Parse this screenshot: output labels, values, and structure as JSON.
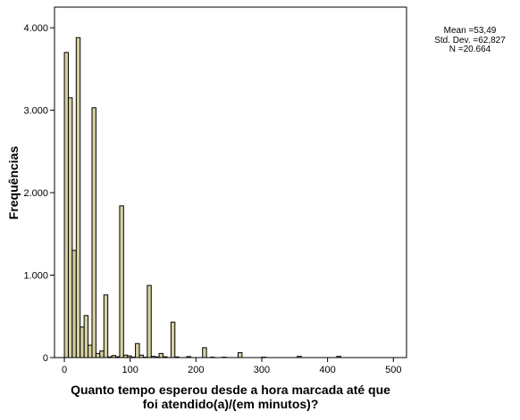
{
  "chart_data": {
    "type": "bar",
    "subtype": "histogram",
    "xlabel_lines": [
      "Quanto tempo esperou desde a hora marcada até que",
      "foi atendido(a)/(em minutos)?"
    ],
    "ylabel": "Frequências",
    "xlim": [
      -15,
      520
    ],
    "ylim": [
      0,
      4250
    ],
    "bin_width": 6,
    "x_ticks": [
      0,
      100,
      200,
      300,
      400,
      500
    ],
    "x_tick_labels": [
      "0",
      "100",
      "200",
      "300",
      "400",
      "500"
    ],
    "y_ticks": [
      0,
      1000,
      2000,
      3000,
      4000
    ],
    "y_tick_labels": [
      "0",
      "1.000",
      "2.000",
      "3.000",
      "4.000"
    ],
    "bins": [
      {
        "x0": 0,
        "count": 3700
      },
      {
        "x0": 6,
        "count": 3150
      },
      {
        "x0": 12,
        "count": 1300
      },
      {
        "x0": 18,
        "count": 3880
      },
      {
        "x0": 24,
        "count": 370
      },
      {
        "x0": 30,
        "count": 510
      },
      {
        "x0": 36,
        "count": 150
      },
      {
        "x0": 42,
        "count": 3030
      },
      {
        "x0": 48,
        "count": 50
      },
      {
        "x0": 54,
        "count": 80
      },
      {
        "x0": 60,
        "count": 760
      },
      {
        "x0": 66,
        "count": 8
      },
      {
        "x0": 72,
        "count": 25
      },
      {
        "x0": 78,
        "count": 10
      },
      {
        "x0": 84,
        "count": 1840
      },
      {
        "x0": 90,
        "count": 30
      },
      {
        "x0": 96,
        "count": 20
      },
      {
        "x0": 102,
        "count": 5
      },
      {
        "x0": 108,
        "count": 170
      },
      {
        "x0": 114,
        "count": 30
      },
      {
        "x0": 120,
        "count": 5
      },
      {
        "x0": 126,
        "count": 875
      },
      {
        "x0": 132,
        "count": 15
      },
      {
        "x0": 138,
        "count": 8
      },
      {
        "x0": 144,
        "count": 50
      },
      {
        "x0": 150,
        "count": 10
      },
      {
        "x0": 162,
        "count": 430
      },
      {
        "x0": 168,
        "count": 8
      },
      {
        "x0": 186,
        "count": 12
      },
      {
        "x0": 210,
        "count": 120
      },
      {
        "x0": 222,
        "count": 5
      },
      {
        "x0": 240,
        "count": 5
      },
      {
        "x0": 264,
        "count": 60
      },
      {
        "x0": 300,
        "count": 5
      },
      {
        "x0": 354,
        "count": 15
      },
      {
        "x0": 414,
        "count": 15
      }
    ],
    "stats": {
      "mean_label": "Mean =53,49",
      "std_label": "Std. Dev. =62,827",
      "n_label": "N =20.664"
    },
    "colors": {
      "bar_fill": "#d6d0a2",
      "bar_stroke": "#000000",
      "plot_bg": "#ffffff",
      "frame": "#000000"
    }
  }
}
